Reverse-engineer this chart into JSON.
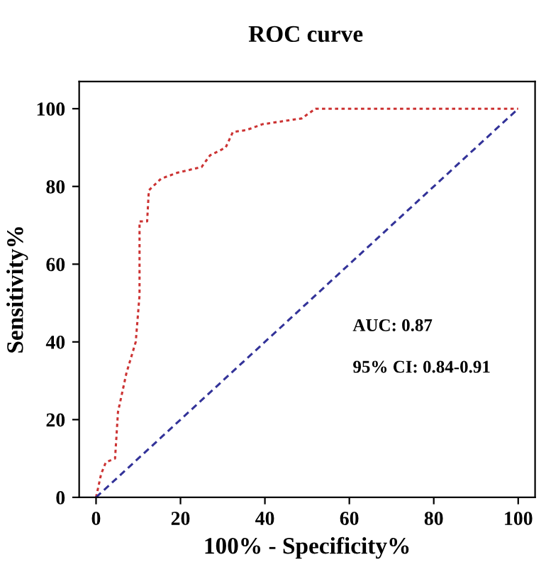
{
  "chart_data": {
    "type": "line",
    "title": "ROC curve",
    "xlabel": "100% - Specificity%",
    "ylabel": "Sensitivity%",
    "xlim": [
      -4,
      104
    ],
    "ylim": [
      0,
      107
    ],
    "xticks": [
      0,
      20,
      40,
      60,
      80,
      100
    ],
    "yticks": [
      0,
      20,
      40,
      60,
      80,
      100
    ],
    "grid": false,
    "legend": false,
    "series": [
      {
        "color": "#cc3333",
        "line_style": "dotted",
        "x": [
          0,
          1.2,
          2.3,
          4.5,
          5.2,
          7.2,
          9.4,
          10.3,
          10.3,
          12.1,
          12.5,
          15.4,
          19.2,
          25,
          27,
          30.7,
          32.4,
          35.6,
          39.4,
          48.7,
          52,
          100
        ],
        "values": [
          0,
          6,
          9,
          10,
          22,
          32,
          40,
          52,
          71,
          71,
          79,
          82,
          83.5,
          85,
          88,
          90,
          94,
          94.5,
          96,
          97.5,
          100,
          100
        ]
      },
      {
        "color": "#333399",
        "line_style": "dashed",
        "x": [
          0,
          100
        ],
        "values": [
          0,
          100
        ]
      }
    ],
    "annotations": [
      {
        "text": "AUC: 0.87"
      },
      {
        "text": "95% CI: 0.84-0.91"
      }
    ]
  }
}
